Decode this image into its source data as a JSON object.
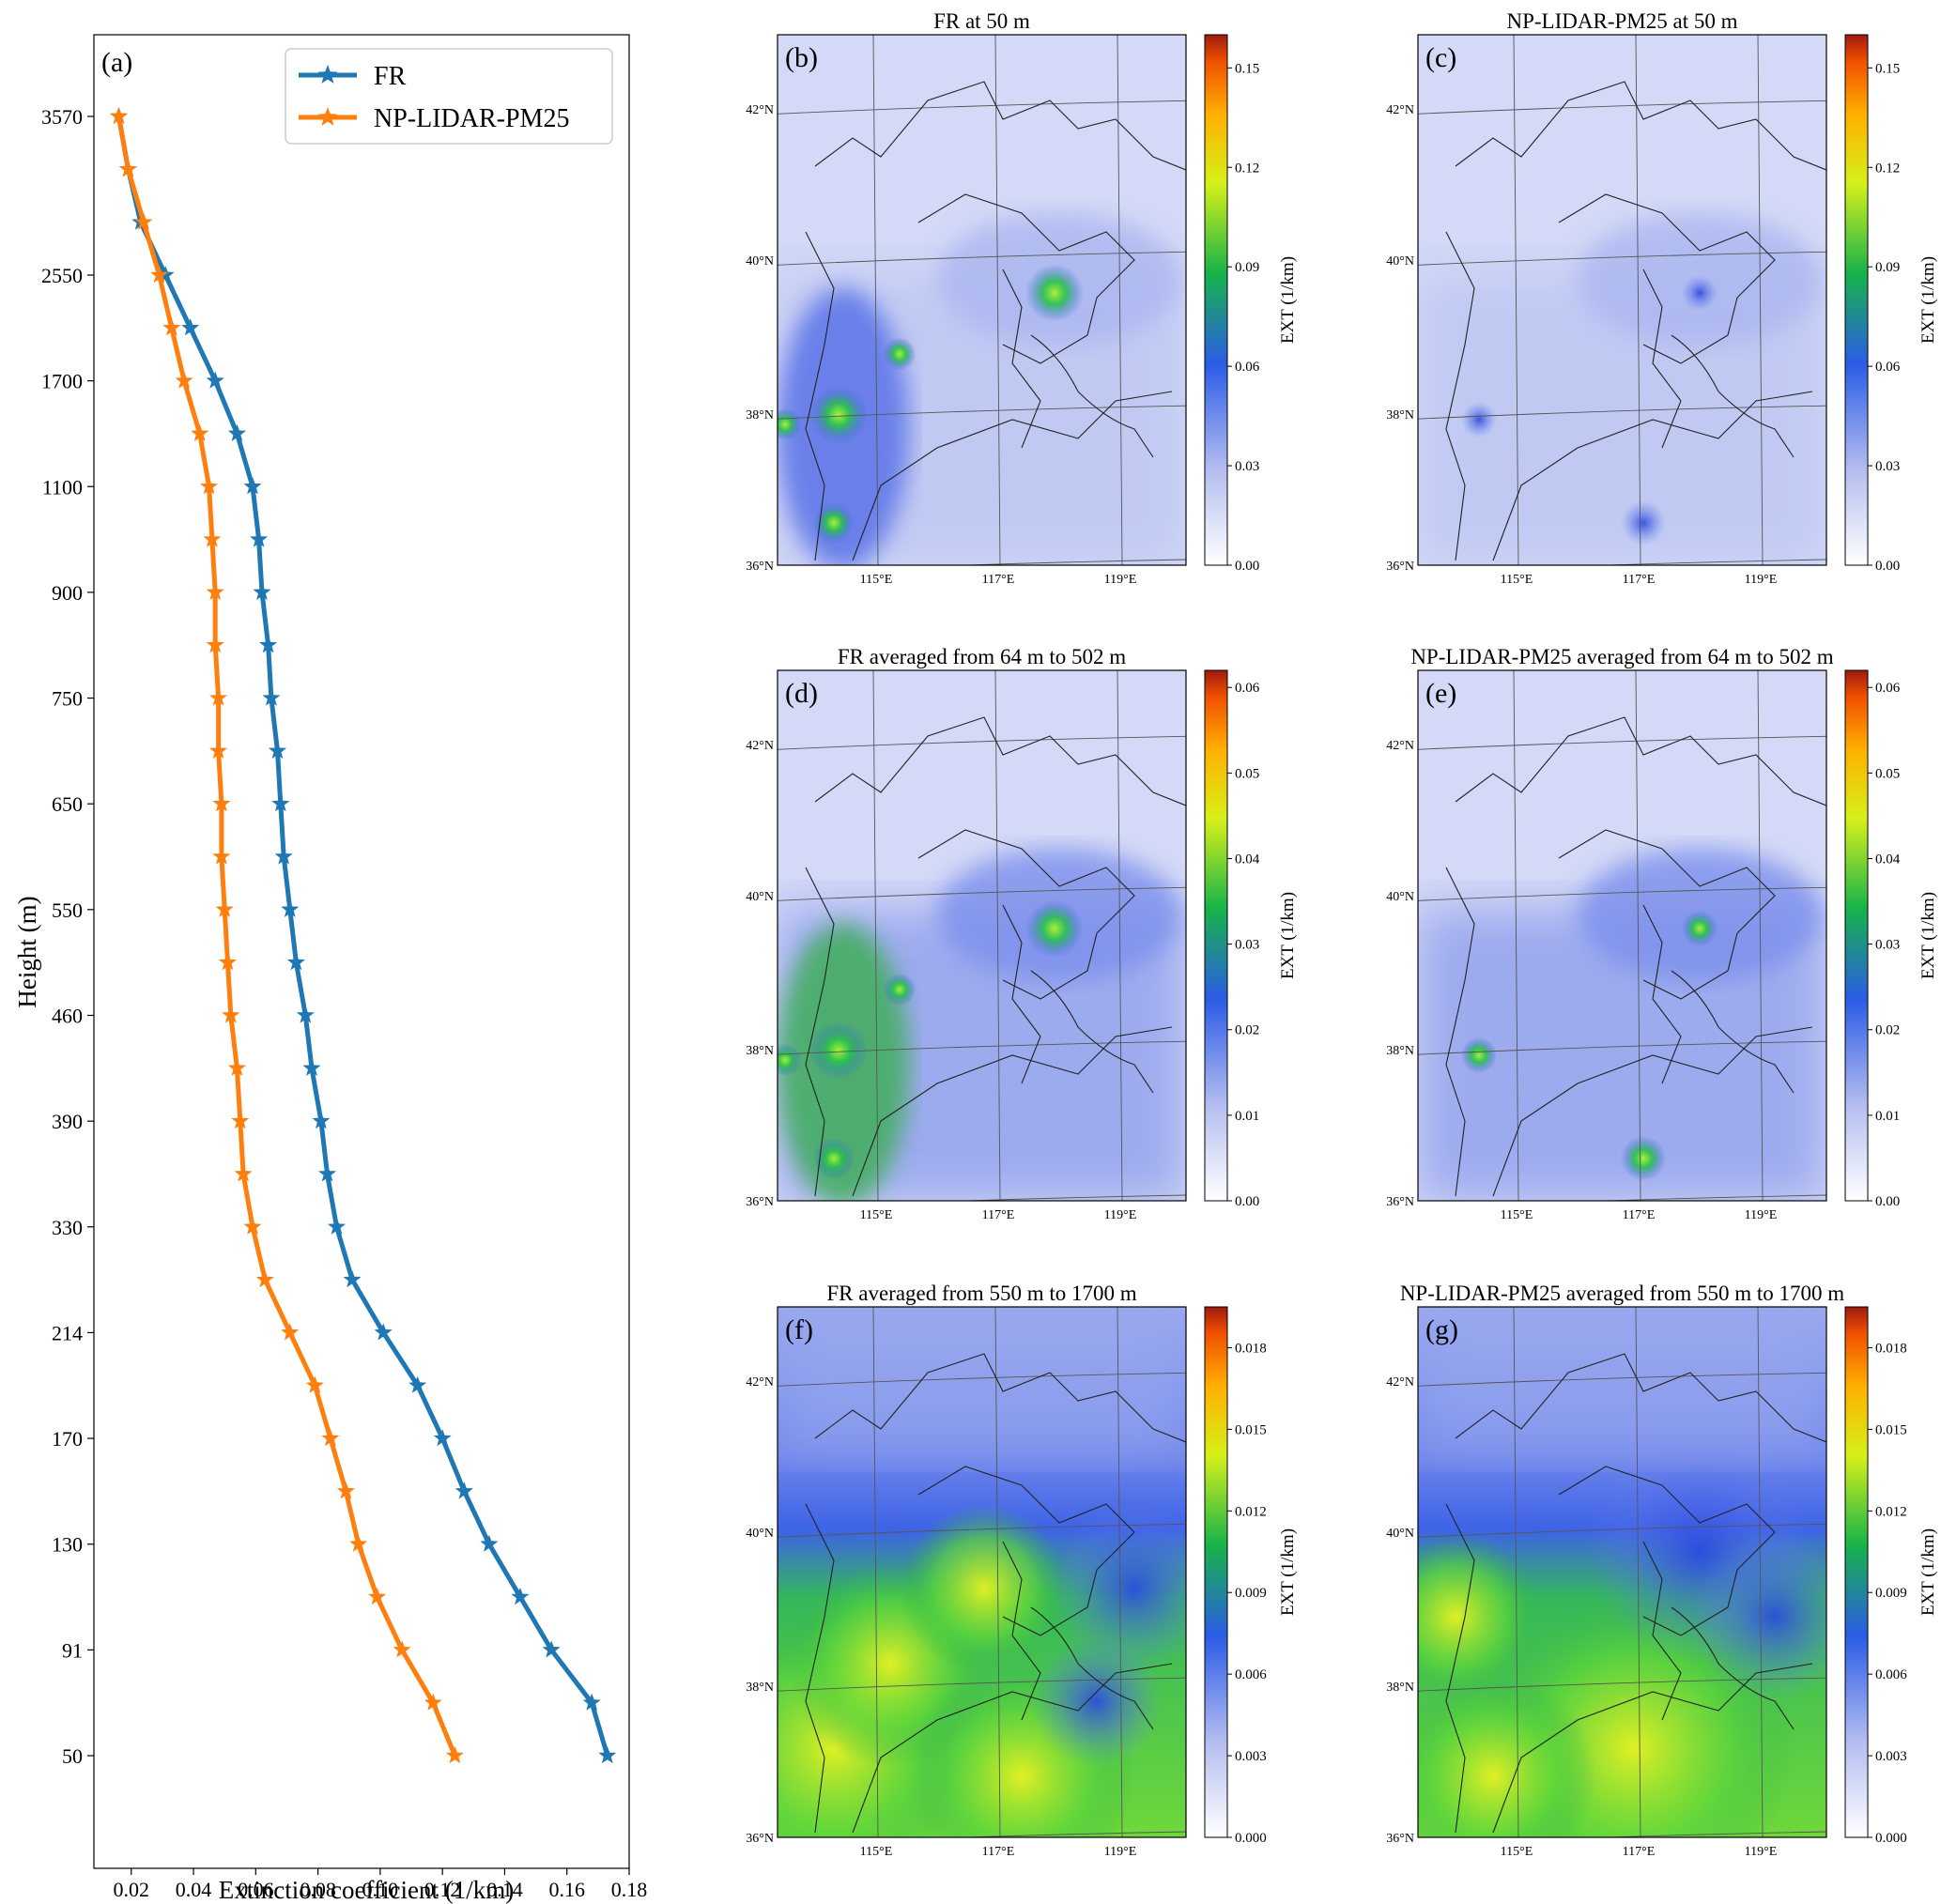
{
  "chart_data": [
    {
      "type": "line",
      "panel_label": "(a)",
      "xlabel": "Extinction coefficient (1/km)",
      "ylabel": "Height (m)",
      "xlim": [
        0.008,
        0.18
      ],
      "x_ticks": [
        "0.02",
        "0.04",
        "0.06",
        "0.08",
        "0.10",
        "0.12",
        "0.14",
        "0.16",
        "0.18"
      ],
      "y_ticks": [
        "50",
        "91",
        "130",
        "170",
        "214",
        "330",
        "390",
        "460",
        "550",
        "650",
        "750",
        "900",
        "1100",
        "1700",
        "2550",
        "3570"
      ],
      "legend_position": "top-right",
      "grid": false,
      "series": [
        {
          "name": "FR",
          "color": "#1f77b4",
          "values": [
            0.173,
            0.168,
            0.155,
            0.145,
            0.135,
            0.127,
            0.12,
            0.112,
            0.101,
            0.091,
            0.086,
            0.083,
            0.081,
            0.078,
            0.076,
            0.073,
            0.071,
            0.069,
            0.068,
            0.067,
            0.065,
            0.064,
            0.062,
            0.061,
            0.059,
            0.054,
            0.047,
            0.039,
            0.031,
            0.023,
            0.019,
            0.016
          ]
        },
        {
          "name": "NP-LIDAR-PM25",
          "color": "#ff7f0e",
          "values": [
            0.124,
            0.117,
            0.107,
            0.099,
            0.093,
            0.089,
            0.084,
            0.079,
            0.071,
            0.063,
            0.059,
            0.056,
            0.055,
            0.054,
            0.052,
            0.051,
            0.05,
            0.049,
            0.049,
            0.048,
            0.048,
            0.047,
            0.047,
            0.046,
            0.045,
            0.042,
            0.037,
            0.033,
            0.029,
            0.024,
            0.019,
            0.016
          ]
        }
      ]
    },
    {
      "type": "heatmap",
      "panel_label": "(b)",
      "title": "FR at 50 m",
      "colorbar_label": "EXT (1/km)",
      "vmax": 0.16,
      "colorbar_ticks": [
        "0.00",
        "0.03",
        "0.06",
        "0.09",
        "0.12",
        "0.15"
      ],
      "lat_ticks": [
        "36°N",
        "38°N",
        "40°N",
        "42°N"
      ],
      "lon_ticks": [
        "115°E",
        "117°E",
        "119°E"
      ]
    },
    {
      "type": "heatmap",
      "panel_label": "(c)",
      "title": "NP-LIDAR-PM25 at 50 m",
      "colorbar_label": "EXT (1/km)",
      "vmax": 0.16,
      "colorbar_ticks": [
        "0.00",
        "0.03",
        "0.06",
        "0.09",
        "0.12",
        "0.15"
      ],
      "lat_ticks": [
        "36°N",
        "38°N",
        "40°N",
        "42°N"
      ],
      "lon_ticks": [
        "115°E",
        "117°E",
        "119°E"
      ]
    },
    {
      "type": "heatmap",
      "panel_label": "(d)",
      "title": "FR averaged from 64 m to 502 m",
      "colorbar_label": "EXT (1/km)",
      "vmax": 0.062,
      "colorbar_ticks": [
        "0.00",
        "0.01",
        "0.02",
        "0.03",
        "0.04",
        "0.05",
        "0.06"
      ],
      "lat_ticks": [
        "36°N",
        "38°N",
        "40°N",
        "42°N"
      ],
      "lon_ticks": [
        "115°E",
        "117°E",
        "119°E"
      ]
    },
    {
      "type": "heatmap",
      "panel_label": "(e)",
      "title": "NP-LIDAR-PM25 averaged from 64 m to 502 m",
      "colorbar_label": "EXT (1/km)",
      "vmax": 0.062,
      "colorbar_ticks": [
        "0.00",
        "0.01",
        "0.02",
        "0.03",
        "0.04",
        "0.05",
        "0.06"
      ],
      "lat_ticks": [
        "36°N",
        "38°N",
        "40°N",
        "42°N"
      ],
      "lon_ticks": [
        "115°E",
        "117°E",
        "119°E"
      ]
    },
    {
      "type": "heatmap",
      "panel_label": "(f)",
      "title": "FR averaged from 550 m to 1700 m",
      "colorbar_label": "EXT (1/km)",
      "vmax": 0.0195,
      "colorbar_ticks": [
        "0.000",
        "0.003",
        "0.006",
        "0.009",
        "0.012",
        "0.015",
        "0.018"
      ],
      "lat_ticks": [
        "36°N",
        "38°N",
        "40°N",
        "42°N"
      ],
      "lon_ticks": [
        "115°E",
        "117°E",
        "119°E"
      ]
    },
    {
      "type": "heatmap",
      "panel_label": "(g)",
      "title": "NP-LIDAR-PM25 averaged from 550 m to 1700 m",
      "colorbar_label": "EXT (1/km)",
      "vmax": 0.0195,
      "colorbar_ticks": [
        "0.000",
        "0.003",
        "0.006",
        "0.009",
        "0.012",
        "0.015",
        "0.018"
      ],
      "lat_ticks": [
        "36°N",
        "38°N",
        "40°N",
        "42°N"
      ],
      "lon_ticks": [
        "115°E",
        "117°E",
        "119°E"
      ]
    }
  ]
}
